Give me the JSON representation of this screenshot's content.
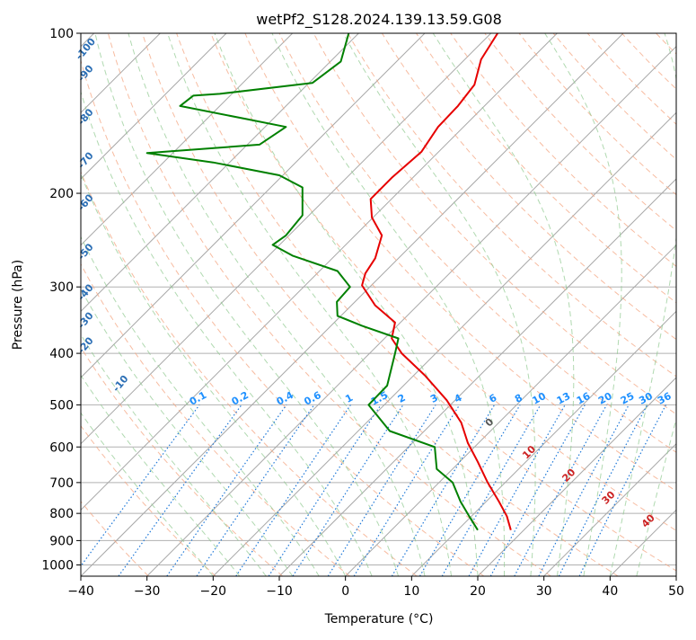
{
  "chart_data": {
    "type": "line",
    "title": "wetPf2_S128.2024.139.13.59.G08",
    "xlabel": "Temperature (°C)",
    "ylabel": "Pressure (hPa)",
    "xlim": [
      -40,
      50
    ],
    "ylim": [
      1050,
      100
    ],
    "y_scale": "log",
    "x_ticks": [
      "−40",
      "−30",
      "−20",
      "−10",
      "0",
      "10",
      "20",
      "30",
      "40",
      "50"
    ],
    "x_tick_values": [
      -40,
      -30,
      -20,
      -10,
      0,
      10,
      20,
      30,
      40,
      50
    ],
    "y_ticks": [
      "100",
      "200",
      "300",
      "400",
      "500",
      "600",
      "700",
      "800",
      "900",
      "1000"
    ],
    "y_tick_values": [
      100,
      200,
      300,
      400,
      500,
      600,
      700,
      800,
      900,
      1000
    ],
    "grid": true,
    "series": [
      {
        "role": "temperature",
        "color": "#e60000",
        "points": [
          [
            23,
            100
          ],
          [
            20.5,
            112
          ],
          [
            19.5,
            125
          ],
          [
            17,
            137
          ],
          [
            14,
            150
          ],
          [
            11.5,
            167
          ],
          [
            7,
            187
          ],
          [
            3.8,
            205
          ],
          [
            4,
            222
          ],
          [
            5.5,
            240
          ],
          [
            4.5,
            265
          ],
          [
            3,
            283
          ],
          [
            2.5,
            298
          ],
          [
            4.5,
            325
          ],
          [
            7.5,
            350
          ],
          [
            7,
            375
          ],
          [
            8.5,
            400
          ],
          [
            12,
            440
          ],
          [
            15.3,
            490
          ],
          [
            17.5,
            540
          ],
          [
            18.5,
            590
          ],
          [
            20,
            640
          ],
          [
            21.5,
            700
          ],
          [
            23.2,
            760
          ],
          [
            24.4,
            810
          ],
          [
            25,
            860
          ]
        ]
      },
      {
        "role": "dewpoint",
        "color": "#008000",
        "points": [
          [
            0.5,
            100
          ],
          [
            -0.7,
            113
          ],
          [
            -5,
            124
          ],
          [
            -19,
            130
          ],
          [
            -23,
            131
          ],
          [
            -25,
            137
          ],
          [
            -15,
            145
          ],
          [
            -9,
            150
          ],
          [
            -13,
            162
          ],
          [
            -30,
            168
          ],
          [
            -20,
            175
          ],
          [
            -10,
            185
          ],
          [
            -6.5,
            195
          ],
          [
            -6.5,
            205
          ],
          [
            -6.5,
            220
          ],
          [
            -9,
            240
          ],
          [
            -11,
            250
          ],
          [
            -8,
            262
          ],
          [
            -1.2,
            280
          ],
          [
            0.7,
            300
          ],
          [
            -1.3,
            320
          ],
          [
            -1.2,
            340
          ],
          [
            2.5,
            355
          ],
          [
            8,
            375
          ],
          [
            7.5,
            400
          ],
          [
            6.3,
            460
          ],
          [
            3.5,
            500
          ],
          [
            6.7,
            560
          ],
          [
            13.5,
            600
          ],
          [
            13.8,
            660
          ],
          [
            16.2,
            700
          ],
          [
            17.4,
            760
          ],
          [
            18.7,
            810
          ],
          [
            20,
            860
          ]
        ]
      }
    ],
    "dry_adiabat_labels": [
      "-100",
      "-90",
      "-80",
      "-70",
      "-60",
      "-50",
      "-40",
      "-30",
      "-20",
      "-10"
    ],
    "moist_adiabat_labels": [
      "0",
      "10",
      "20",
      "30",
      "40"
    ],
    "mixing_ratio_labels": [
      "0.1",
      "0.2",
      "0.4",
      "0.6",
      "1",
      "1.5",
      "2",
      "3",
      "4",
      "6",
      "8",
      "10",
      "13",
      "16",
      "20",
      "25",
      "30",
      "36"
    ]
  }
}
